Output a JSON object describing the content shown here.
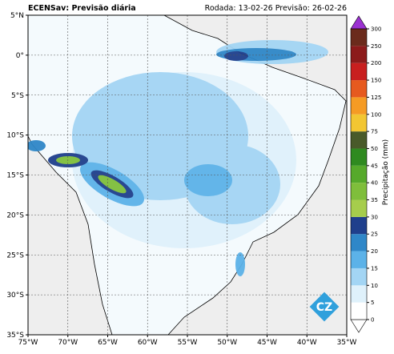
{
  "map": {
    "title": "ECENSav: Previsão diária",
    "subtitle": "Rodada: 13-02-26 Previsão: 26-02-26",
    "xlim": [
      -75,
      -35
    ],
    "ylim": [
      -35,
      5
    ],
    "lon_ticks": [
      {
        "value": -75,
        "label": "75°W"
      },
      {
        "value": -70,
        "label": "70°W"
      },
      {
        "value": -65,
        "label": "65°W"
      },
      {
        "value": -60,
        "label": "60°W"
      },
      {
        "value": -55,
        "label": "55°W"
      },
      {
        "value": -50,
        "label": "50°W"
      },
      {
        "value": -45,
        "label": "45°W"
      },
      {
        "value": -40,
        "label": "40°W"
      },
      {
        "value": -35,
        "label": "35°W"
      }
    ],
    "lat_ticks": [
      {
        "value": 5,
        "label": "5°N"
      },
      {
        "value": 0,
        "label": "0°"
      },
      {
        "value": -5,
        "label": "5°S"
      },
      {
        "value": -10,
        "label": "10°S"
      },
      {
        "value": -15,
        "label": "15°S"
      },
      {
        "value": -20,
        "label": "20°S"
      },
      {
        "value": -25,
        "label": "25°S"
      },
      {
        "value": -30,
        "label": "30°S"
      },
      {
        "value": -35,
        "label": "35°S"
      }
    ],
    "colorbar": {
      "label": "Precipitação (mm)",
      "levels": [
        0,
        5,
        10,
        15,
        20,
        25,
        30,
        35,
        40,
        45,
        50,
        75,
        100,
        125,
        150,
        200,
        250,
        300
      ],
      "colors": [
        "#ffffff",
        "#dff1fb",
        "#a3d5f4",
        "#5cb2e8",
        "#2f87c8",
        "#1f3f8c",
        "#a6cd4c",
        "#7fbe3b",
        "#56a92b",
        "#2f8a20",
        "#495a2a",
        "#f2c632",
        "#f59b24",
        "#e65a1f",
        "#c81f1f",
        "#8c1b1b",
        "#6b2b1c"
      ],
      "over_color": "#9b31d1",
      "under_color": "#ffffff"
    }
  }
}
